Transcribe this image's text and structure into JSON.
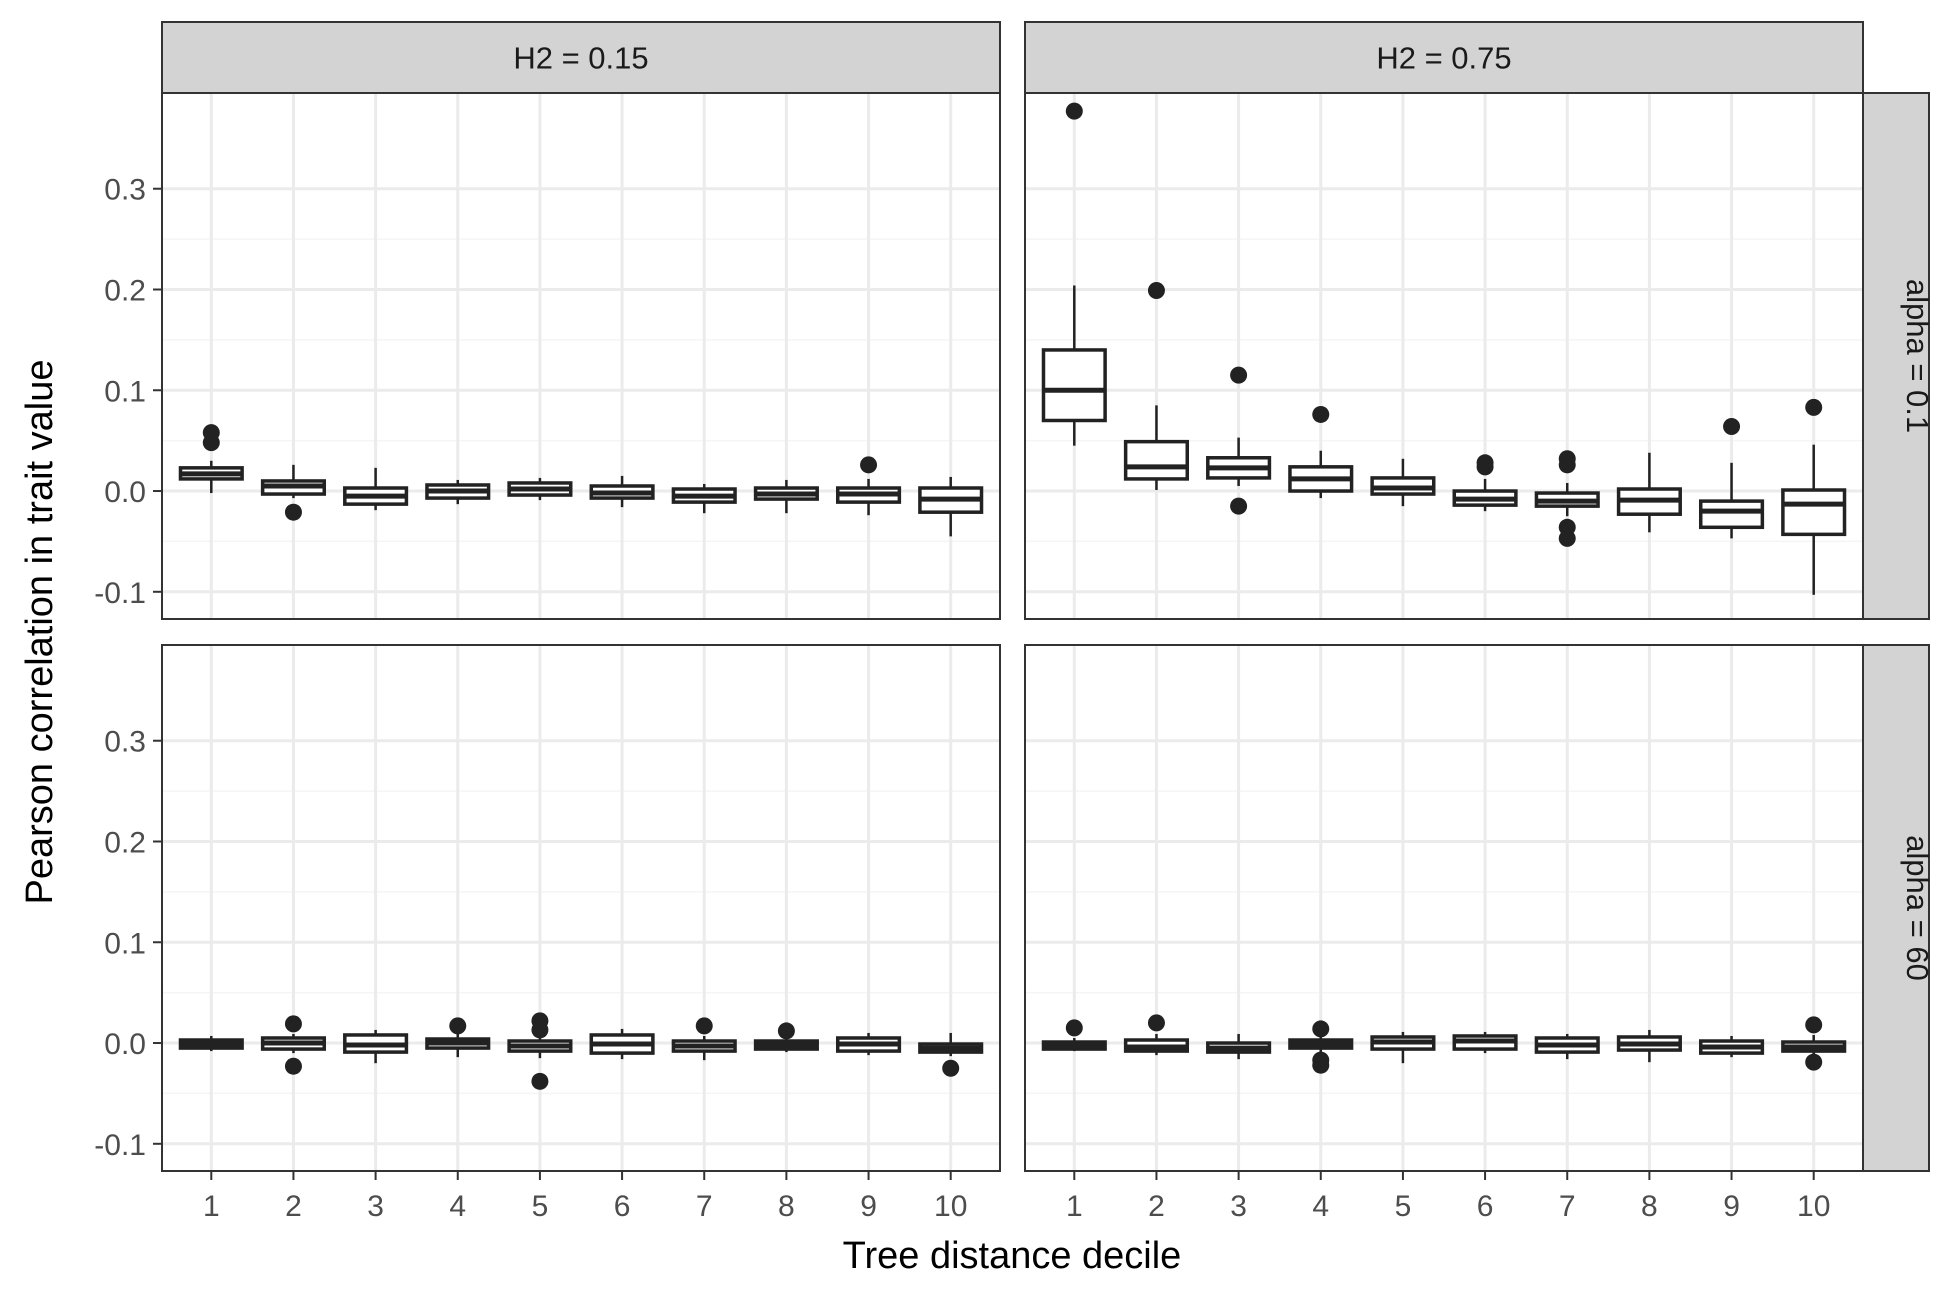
{
  "chart_data": {
    "type": "boxplot",
    "xlabel": "Tree distance decile",
    "ylabel": "Pearson correlation in trait value",
    "categories": [
      "1",
      "2",
      "3",
      "4",
      "5",
      "6",
      "7",
      "8",
      "9",
      "10"
    ],
    "y_ticks": [
      -0.1,
      0.0,
      0.1,
      0.2,
      0.3
    ],
    "y_tick_labels": [
      "-0.1",
      "0.0",
      "0.1",
      "0.2",
      "0.3"
    ],
    "ylim": [
      -0.127,
      0.395
    ],
    "grid": true,
    "facet_cols": [
      "H2 = 0.15",
      "H2 = 0.75"
    ],
    "facet_rows": [
      "alpha = 0.1",
      "alpha = 60"
    ],
    "panels": [
      {
        "col": 0,
        "row": 0,
        "boxes": [
          {
            "category": "1",
            "whisker_low": -0.002,
            "q1": 0.012,
            "median": 0.017,
            "q3": 0.023,
            "whisker_high": 0.03,
            "outliers": [
              0.048,
              0.058
            ]
          },
          {
            "category": "2",
            "whisker_low": -0.007,
            "q1": -0.003,
            "median": 0.005,
            "q3": 0.01,
            "whisker_high": 0.026,
            "outliers": [
              -0.021
            ]
          },
          {
            "category": "3",
            "whisker_low": -0.019,
            "q1": -0.013,
            "median": -0.005,
            "q3": 0.003,
            "whisker_high": 0.023,
            "outliers": []
          },
          {
            "category": "4",
            "whisker_low": -0.013,
            "q1": -0.007,
            "median": 0.0,
            "q3": 0.006,
            "whisker_high": 0.011,
            "outliers": []
          },
          {
            "category": "5",
            "whisker_low": -0.009,
            "q1": -0.004,
            "median": 0.002,
            "q3": 0.008,
            "whisker_high": 0.013,
            "outliers": []
          },
          {
            "category": "6",
            "whisker_low": -0.016,
            "q1": -0.007,
            "median": -0.002,
            "q3": 0.005,
            "whisker_high": 0.015,
            "outliers": []
          },
          {
            "category": "7",
            "whisker_low": -0.022,
            "q1": -0.011,
            "median": -0.005,
            "q3": 0.002,
            "whisker_high": 0.007,
            "outliers": []
          },
          {
            "category": "8",
            "whisker_low": -0.022,
            "q1": -0.008,
            "median": -0.003,
            "q3": 0.003,
            "whisker_high": 0.011,
            "outliers": []
          },
          {
            "category": "9",
            "whisker_low": -0.024,
            "q1": -0.011,
            "median": -0.003,
            "q3": 0.003,
            "whisker_high": 0.012,
            "outliers": [
              0.026
            ]
          },
          {
            "category": "10",
            "whisker_low": -0.045,
            "q1": -0.021,
            "median": -0.008,
            "q3": 0.003,
            "whisker_high": 0.014,
            "outliers": []
          }
        ]
      },
      {
        "col": 1,
        "row": 0,
        "boxes": [
          {
            "category": "1",
            "whisker_low": 0.045,
            "q1": 0.07,
            "median": 0.1,
            "q3": 0.14,
            "whisker_high": 0.204,
            "outliers": [
              0.377
            ]
          },
          {
            "category": "2",
            "whisker_low": 0.001,
            "q1": 0.012,
            "median": 0.024,
            "q3": 0.049,
            "whisker_high": 0.085,
            "outliers": [
              0.199
            ]
          },
          {
            "category": "3",
            "whisker_low": 0.005,
            "q1": 0.013,
            "median": 0.023,
            "q3": 0.033,
            "whisker_high": 0.053,
            "outliers": [
              0.115,
              -0.015
            ]
          },
          {
            "category": "4",
            "whisker_low": -0.007,
            "q1": 0.0,
            "median": 0.012,
            "q3": 0.024,
            "whisker_high": 0.04,
            "outliers": [
              0.076
            ]
          },
          {
            "category": "5",
            "whisker_low": -0.015,
            "q1": -0.003,
            "median": 0.003,
            "q3": 0.013,
            "whisker_high": 0.032,
            "outliers": []
          },
          {
            "category": "6",
            "whisker_low": -0.02,
            "q1": -0.014,
            "median": -0.008,
            "q3": 0.0,
            "whisker_high": 0.012,
            "outliers": [
              0.028,
              0.024
            ]
          },
          {
            "category": "7",
            "whisker_low": -0.025,
            "q1": -0.015,
            "median": -0.01,
            "q3": -0.002,
            "whisker_high": 0.008,
            "outliers": [
              0.032,
              0.026,
              -0.036,
              -0.047
            ]
          },
          {
            "category": "8",
            "whisker_low": -0.041,
            "q1": -0.023,
            "median": -0.009,
            "q3": 0.002,
            "whisker_high": 0.038,
            "outliers": []
          },
          {
            "category": "9",
            "whisker_low": -0.047,
            "q1": -0.036,
            "median": -0.02,
            "q3": -0.01,
            "whisker_high": 0.028,
            "outliers": [
              0.064
            ]
          },
          {
            "category": "10",
            "whisker_low": -0.103,
            "q1": -0.043,
            "median": -0.013,
            "q3": 0.001,
            "whisker_high": 0.046,
            "outliers": [
              0.083
            ]
          }
        ]
      },
      {
        "col": 0,
        "row": 1,
        "boxes": [
          {
            "category": "1",
            "whisker_low": -0.008,
            "q1": -0.005,
            "median": -0.001,
            "q3": 0.003,
            "whisker_high": 0.007,
            "outliers": []
          },
          {
            "category": "2",
            "whisker_low": -0.01,
            "q1": -0.006,
            "median": 0.0,
            "q3": 0.005,
            "whisker_high": 0.009,
            "outliers": [
              0.019,
              -0.023
            ]
          },
          {
            "category": "3",
            "whisker_low": -0.02,
            "q1": -0.009,
            "median": -0.002,
            "q3": 0.008,
            "whisker_high": 0.013,
            "outliers": []
          },
          {
            "category": "4",
            "whisker_low": -0.014,
            "q1": -0.005,
            "median": 0.0,
            "q3": 0.004,
            "whisker_high": 0.01,
            "outliers": [
              0.017
            ]
          },
          {
            "category": "5",
            "whisker_low": -0.015,
            "q1": -0.008,
            "median": -0.003,
            "q3": 0.002,
            "whisker_high": 0.008,
            "outliers": [
              0.022,
              0.013,
              -0.038
            ]
          },
          {
            "category": "6",
            "whisker_low": -0.016,
            "q1": -0.01,
            "median": -0.001,
            "q3": 0.008,
            "whisker_high": 0.014,
            "outliers": []
          },
          {
            "category": "7",
            "whisker_low": -0.017,
            "q1": -0.008,
            "median": -0.003,
            "q3": 0.002,
            "whisker_high": 0.007,
            "outliers": [
              0.017
            ]
          },
          {
            "category": "8",
            "whisker_low": -0.009,
            "q1": -0.006,
            "median": -0.002,
            "q3": 0.002,
            "whisker_high": 0.007,
            "outliers": [
              0.012
            ]
          },
          {
            "category": "9",
            "whisker_low": -0.012,
            "q1": -0.008,
            "median": -0.001,
            "q3": 0.005,
            "whisker_high": 0.01,
            "outliers": []
          },
          {
            "category": "10",
            "whisker_low": -0.013,
            "q1": -0.009,
            "median": -0.005,
            "q3": -0.001,
            "whisker_high": 0.01,
            "outliers": [
              -0.025
            ]
          }
        ]
      },
      {
        "col": 1,
        "row": 1,
        "boxes": [
          {
            "category": "1",
            "whisker_low": -0.008,
            "q1": -0.006,
            "median": -0.003,
            "q3": 0.001,
            "whisker_high": 0.005,
            "outliers": [
              0.015
            ]
          },
          {
            "category": "2",
            "whisker_low": -0.012,
            "q1": -0.008,
            "median": -0.004,
            "q3": 0.003,
            "whisker_high": 0.009,
            "outliers": [
              0.02
            ]
          },
          {
            "category": "3",
            "whisker_low": -0.016,
            "q1": -0.009,
            "median": -0.005,
            "q3": 0.0,
            "whisker_high": 0.009,
            "outliers": []
          },
          {
            "category": "4",
            "whisker_low": -0.012,
            "q1": -0.005,
            "median": -0.001,
            "q3": 0.003,
            "whisker_high": 0.01,
            "outliers": [
              0.014,
              -0.017,
              -0.022
            ]
          },
          {
            "category": "5",
            "whisker_low": -0.02,
            "q1": -0.006,
            "median": 0.001,
            "q3": 0.006,
            "whisker_high": 0.011,
            "outliers": []
          },
          {
            "category": "6",
            "whisker_low": -0.01,
            "q1": -0.006,
            "median": 0.002,
            "q3": 0.007,
            "whisker_high": 0.011,
            "outliers": []
          },
          {
            "category": "7",
            "whisker_low": -0.016,
            "q1": -0.009,
            "median": -0.002,
            "q3": 0.005,
            "whisker_high": 0.009,
            "outliers": []
          },
          {
            "category": "8",
            "whisker_low": -0.019,
            "q1": -0.007,
            "median": -0.001,
            "q3": 0.006,
            "whisker_high": 0.013,
            "outliers": []
          },
          {
            "category": "9",
            "whisker_low": -0.014,
            "q1": -0.01,
            "median": -0.004,
            "q3": 0.002,
            "whisker_high": 0.007,
            "outliers": []
          },
          {
            "category": "10",
            "whisker_low": -0.015,
            "q1": -0.008,
            "median": -0.004,
            "q3": 0.001,
            "whisker_high": 0.008,
            "outliers": [
              0.018,
              -0.019
            ]
          }
        ]
      }
    ],
    "colors": {
      "strip_fill": "#d3d3d3",
      "border": "#333333",
      "grid_major": "#ebebeb",
      "grid_minor": "#f5f5f5",
      "box_stroke": "#222222",
      "box_fill": "#ffffff",
      "text": "#4d4d4d",
      "title_text": "#000000"
    }
  }
}
